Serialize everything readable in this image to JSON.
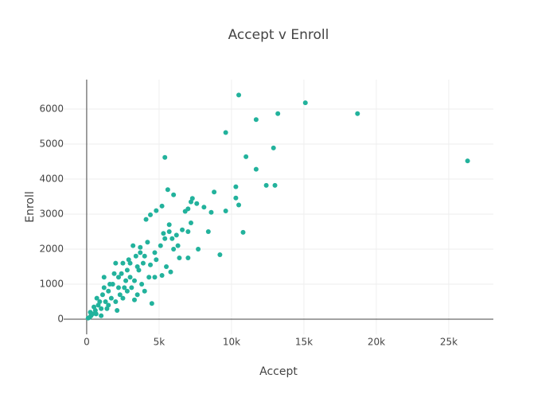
{
  "chart_data": {
    "type": "scatter",
    "title": "Accept v Enroll",
    "x_label": "Accept",
    "y_label": "Enroll",
    "color": "#22b29c",
    "grid": true,
    "xlim": [
      -1590,
      28080
    ],
    "ylim": [
      -432,
      6841
    ],
    "xticks": [
      0,
      {
        "value": 5000,
        "label": "5k"
      },
      {
        "value": 10000,
        "label": "10k"
      },
      {
        "value": 15000,
        "label": "15k"
      },
      {
        "value": 20000,
        "label": "20k"
      },
      {
        "value": 25000,
        "label": "25k"
      }
    ],
    "yticks": [
      0,
      1000,
      2000,
      3000,
      4000,
      5000,
      6000
    ],
    "x": [
      10500,
      15100,
      13200,
      18700,
      9600,
      11700,
      26300,
      12900,
      5400,
      11000,
      11700,
      12400,
      13000,
      10300,
      10300,
      10500,
      9600,
      8800,
      10800,
      9200,
      4500,
      5600,
      7200,
      7000,
      6000,
      5200,
      4800,
      4100,
      4400,
      8100,
      8600,
      7600,
      7300,
      6800,
      8400,
      7700,
      7200,
      7000,
      6600,
      6200,
      5700,
      5400,
      5300,
      6000,
      5500,
      5800,
      5200,
      7000,
      6400,
      4700,
      4200,
      3700,
      3200,
      3400,
      3900,
      4400,
      4700,
      4300,
      3600,
      3000,
      2800,
      2400,
      2600,
      2200,
      2000,
      1800,
      1500,
      1200,
      1300,
      3300,
      3500,
      2100,
      1000,
      800,
      600,
      400,
      300,
      200,
      100,
      700,
      900,
      1100,
      1500,
      1700,
      2000,
      2300,
      2500,
      2800,
      3100,
      3300,
      3800,
      4000,
      1400,
      500,
      1600,
      1900,
      2700,
      3000,
      4800,
      5100,
      5700,
      5900,
      6300,
      4000,
      3500,
      2900,
      1000,
      650,
      250,
      1200,
      2200,
      2500,
      3700
    ],
    "values": [
      6400,
      6180,
      5870,
      5870,
      5330,
      5700,
      4520,
      4890,
      4620,
      4640,
      4280,
      3820,
      3820,
      3780,
      3460,
      3260,
      3090,
      3630,
      2480,
      1840,
      450,
      3700,
      3350,
      3150,
      3550,
      3230,
      3100,
      2850,
      2980,
      3200,
      3050,
      3300,
      3450,
      3080,
      2500,
      2000,
      2750,
      2500,
      2550,
      2400,
      2500,
      2300,
      2450,
      2000,
      1500,
      1350,
      1250,
      1750,
      1750,
      1900,
      2200,
      2050,
      2100,
      1800,
      1600,
      1550,
      1200,
      1200,
      1400,
      1600,
      1400,
      1300,
      900,
      1200,
      1600,
      1000,
      800,
      1200,
      500,
      550,
      700,
      250,
      300,
      400,
      250,
      150,
      100,
      50,
      30,
      600,
      500,
      700,
      400,
      600,
      500,
      700,
      600,
      800,
      900,
      1100,
      1000,
      800,
      300,
      350,
      1000,
      1300,
      1100,
      1200,
      1700,
      2100,
      2700,
      2300,
      2100,
      1800,
      1500,
      1700,
      100,
      150,
      200,
      900,
      900,
      1600,
      1900
    ]
  }
}
